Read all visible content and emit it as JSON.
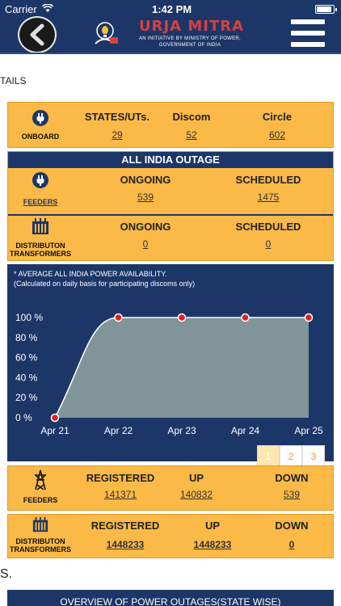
{
  "status_bar": {
    "carrier": "Carrier",
    "time": "1:42 PM"
  },
  "brand": {
    "title": "URJA MITRA",
    "subtitle": "AN INITIATIVE BY MINISTRY OF POWER, GOVERNMENT OF INDIA"
  },
  "page_heading": "TAILS",
  "onboard": {
    "label": "ONBOARD",
    "columns": [
      {
        "header": "STATES/UTs.",
        "value": "29"
      },
      {
        "header": "Discom",
        "value": "52"
      },
      {
        "header": "Circle",
        "value": "602"
      }
    ]
  },
  "outage": {
    "title": "ALL INDIA OUTAGE",
    "feeders": {
      "label": "FEEDERS",
      "ongoing_header": "ONGOING",
      "ongoing": "539",
      "scheduled_header": "SCHEDULED",
      "scheduled": "1475"
    },
    "transformers": {
      "label": "DISTRIBUTON TRANSFORMERS",
      "ongoing_header": "ONGOING",
      "ongoing": "0",
      "scheduled_header": "SCHEDULED",
      "scheduled": "0"
    }
  },
  "chart_note": {
    "line1": "* AVERAGE ALL INDIA POWER AVAILABILITY.",
    "line2": "(Calculated on daily basis for participating discoms only)"
  },
  "chart_data": {
    "type": "area",
    "categories": [
      "Apr 21",
      "Apr 22",
      "Apr 23",
      "Apr 24",
      "Apr 25"
    ],
    "values": [
      0,
      100,
      100,
      100,
      100
    ],
    "y_ticks": [
      "0 %",
      "20 %",
      "40 %",
      "60 %",
      "80 %",
      "100 %"
    ],
    "ylim": [
      0,
      100
    ],
    "fill_color": "#80959a",
    "point_color": "#e02020"
  },
  "pager": [
    "1",
    "2",
    "3"
  ],
  "feeders_status": {
    "label": "FEEDERS",
    "columns": [
      {
        "header": "REGISTERED",
        "value": "141371"
      },
      {
        "header": "UP",
        "value": "140832"
      },
      {
        "header": "DOWN",
        "value": "539"
      }
    ]
  },
  "transformers_status": {
    "label": "DISTRIBUTON TRANSFORMERS",
    "columns": [
      {
        "header": "REGISTERED",
        "value": "1448233"
      },
      {
        "header": "UP",
        "value": "1448233"
      },
      {
        "header": "DOWN",
        "value": "0"
      }
    ]
  },
  "section_fragment": "S.",
  "overview_title": "OVERVIEW OF POWER OUTAGES(STATE WISE)",
  "colors": {
    "navy": "#1d3668",
    "card": "#fbb947",
    "brand_red": "#d64040"
  }
}
